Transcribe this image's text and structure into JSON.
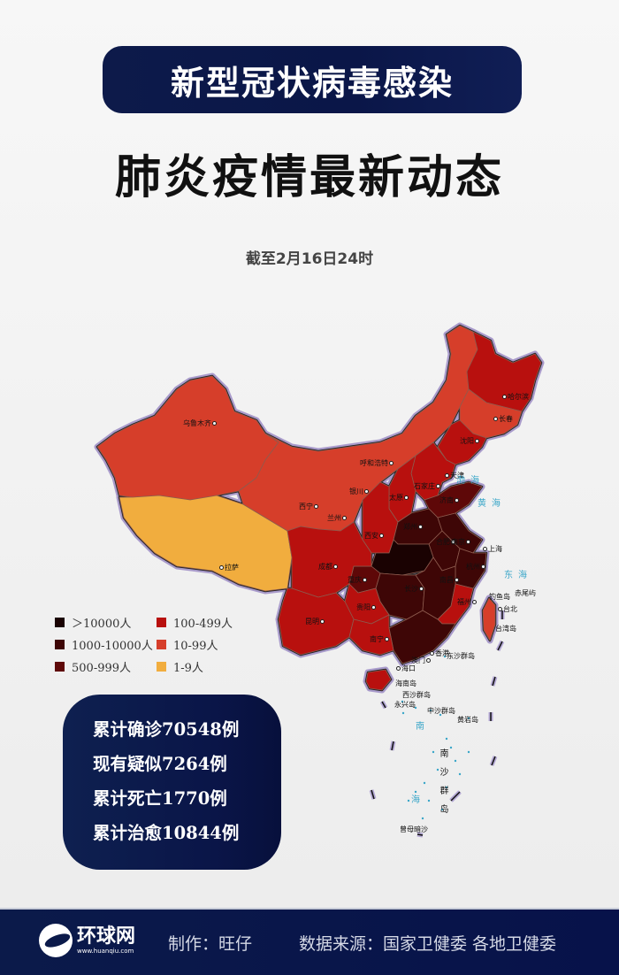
{
  "header": {
    "title": "新型冠状病毒感染",
    "subtitle": "肺炎疫情最新动态",
    "date": "截至2月16日24时"
  },
  "legend": [
    {
      "label": "＞10000人",
      "color": "#1a0202"
    },
    {
      "label": "100-499人",
      "color": "#b8100e"
    },
    {
      "label": "1000-10000人",
      "color": "#3e0606"
    },
    {
      "label": "10-99人",
      "color": "#d63e2a"
    },
    {
      "label": "500-999人",
      "color": "#5e0808"
    },
    {
      "label": "1-9人",
      "color": "#f1ad3e"
    }
  ],
  "map": {
    "cities": [
      "乌鲁木齐",
      "拉萨",
      "西宁",
      "兰州",
      "银川",
      "呼和浩特",
      "哈尔滨",
      "长春",
      "沈阳",
      "天津",
      "石家庄",
      "太原",
      "济南",
      "郑州",
      "西安",
      "合肥",
      "南京",
      "上海",
      "杭州",
      "成都",
      "重庆",
      "长沙",
      "南昌",
      "贵阳",
      "福州",
      "昆明",
      "南宁",
      "香港",
      "澳门",
      "海口",
      "台北"
    ],
    "islands": [
      "海南岛",
      "台湾岛",
      "钓鱼岛",
      "赤尾屿",
      "东沙群岛",
      "西沙群岛",
      "永兴岛",
      "中沙群岛",
      "黄岩岛",
      "南沙群岛",
      "曾母暗沙"
    ],
    "seas": [
      "渤海",
      "黄海",
      "东海",
      "南",
      "海"
    ]
  },
  "stats": [
    "累计确诊70548例",
    "现有疑似7264例",
    "累计死亡1770例",
    "累计治愈10844例"
  ],
  "footer": {
    "logo_text": "环球网",
    "logo_url": "www.huanqiu.com",
    "author": "制作：旺仔",
    "source": "数据来源：国家卫健委 各地卫健委"
  }
}
